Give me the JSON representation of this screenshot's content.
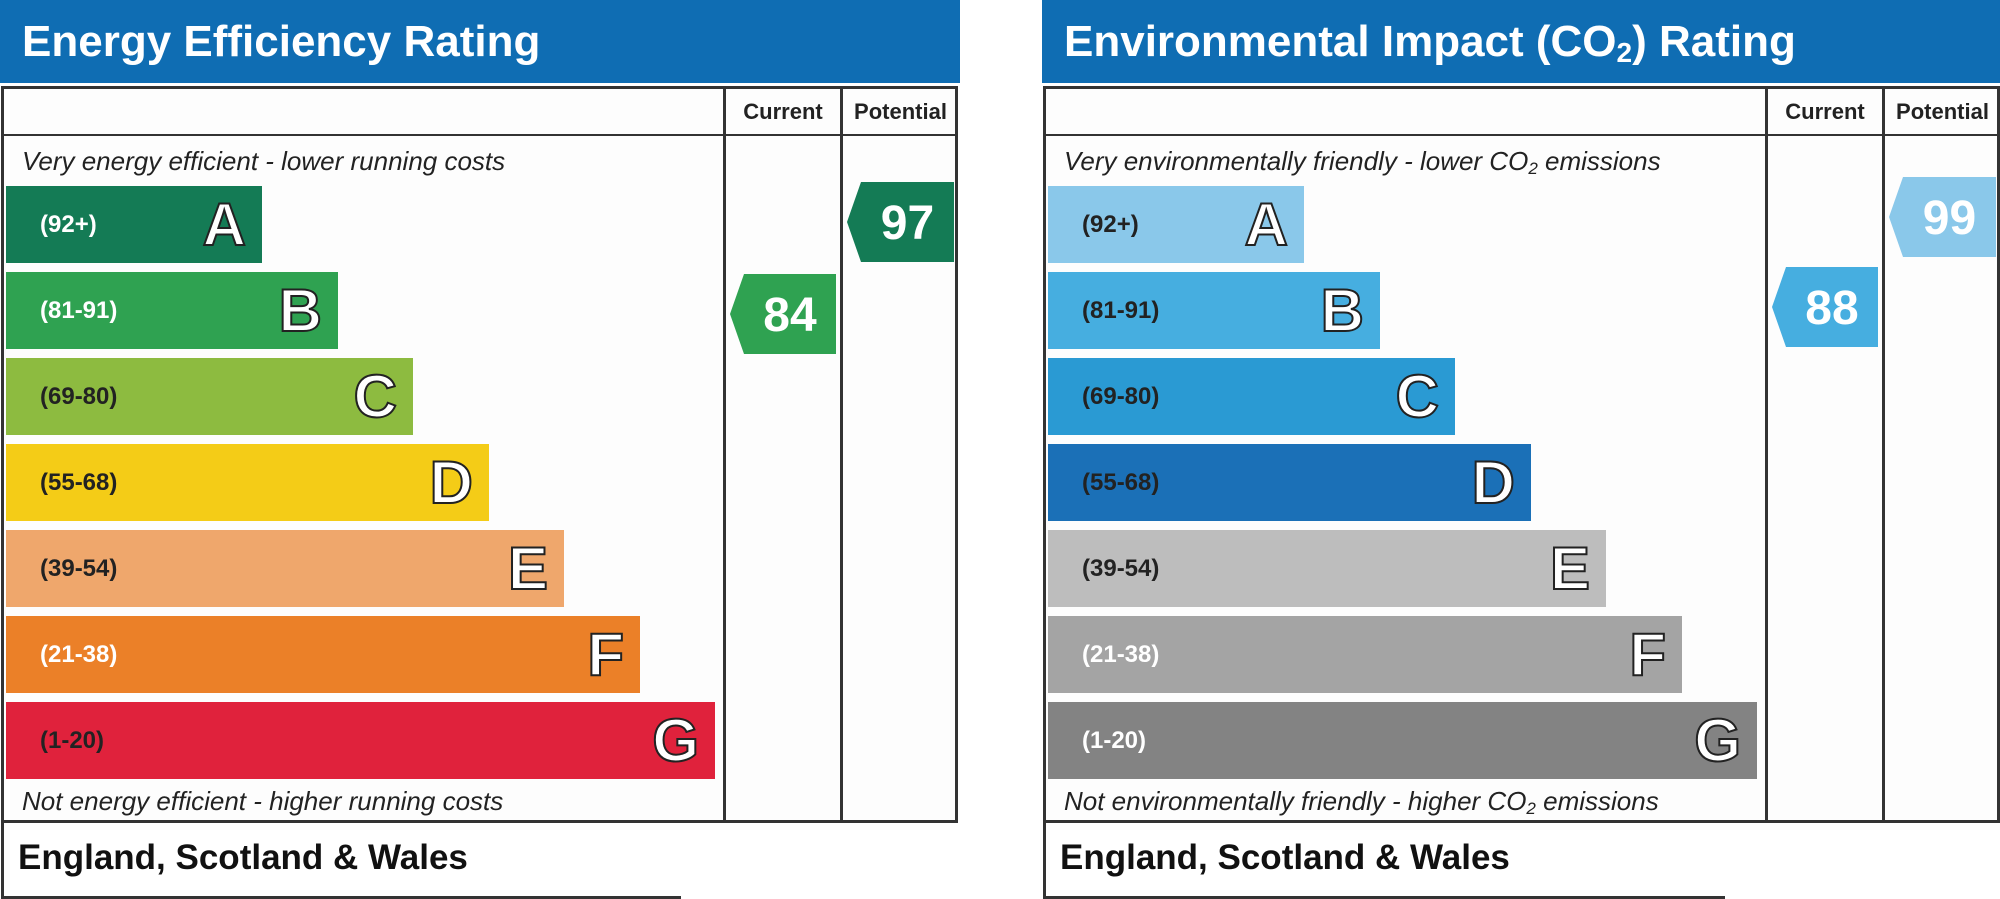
{
  "colors": {
    "title_bar": "#0f6db3",
    "energy_bands": [
      "#147b55",
      "#2fa251",
      "#8dbb40",
      "#f4cc17",
      "#efa76c",
      "#eb8028",
      "#e0223c"
    ],
    "environmental_bands": [
      "#8ac8ea",
      "#46aee0",
      "#2a9ad3",
      "#1b70b7",
      "#bdbdbd",
      "#a4a4a4",
      "#838383"
    ]
  },
  "chart_data": [
    {
      "type": "bar",
      "title": "Energy Efficiency Rating",
      "column_headers": [
        "Current",
        "Potential"
      ],
      "top_caption": "Very energy efficient - lower running costs",
      "bottom_caption": "Not energy efficient - higher running costs",
      "footer": "England, Scotland & Wales",
      "bands": [
        {
          "letter": "A",
          "range": "(92+)",
          "min": 92,
          "max": 100
        },
        {
          "letter": "B",
          "range": "(81-91)",
          "min": 81,
          "max": 91
        },
        {
          "letter": "C",
          "range": "(69-80)",
          "min": 69,
          "max": 80
        },
        {
          "letter": "D",
          "range": "(55-68)",
          "min": 55,
          "max": 68
        },
        {
          "letter": "E",
          "range": "(39-54)",
          "min": 39,
          "max": 54
        },
        {
          "letter": "F",
          "range": "(21-38)",
          "min": 21,
          "max": 38
        },
        {
          "letter": "G",
          "range": "(1-20)",
          "min": 1,
          "max": 20
        }
      ],
      "current": 84,
      "potential": 97
    },
    {
      "type": "bar",
      "title_main": "Environmental Impact (CO",
      "title_sub": "2",
      "title_end": ") Rating",
      "column_headers": [
        "Current",
        "Potential"
      ],
      "top_caption_main": "Very environmentally friendly - lower CO",
      "top_caption_sub": "2",
      "top_caption_end": " emissions",
      "bottom_caption_main": "Not environmentally friendly - higher CO",
      "bottom_caption_sub": "2",
      "bottom_caption_end": " emissions",
      "footer": "England, Scotland & Wales",
      "bands": [
        {
          "letter": "A",
          "range": "(92+)",
          "min": 92,
          "max": 100
        },
        {
          "letter": "B",
          "range": "(81-91)",
          "min": 81,
          "max": 91
        },
        {
          "letter": "C",
          "range": "(69-80)",
          "min": 69,
          "max": 80
        },
        {
          "letter": "D",
          "range": "(55-68)",
          "min": 55,
          "max": 68
        },
        {
          "letter": "E",
          "range": "(39-54)",
          "min": 39,
          "max": 54
        },
        {
          "letter": "F",
          "range": "(21-38)",
          "min": 21,
          "max": 38
        },
        {
          "letter": "G",
          "range": "(1-20)",
          "min": 1,
          "max": 20
        }
      ],
      "current": 88,
      "potential": 99
    }
  ]
}
